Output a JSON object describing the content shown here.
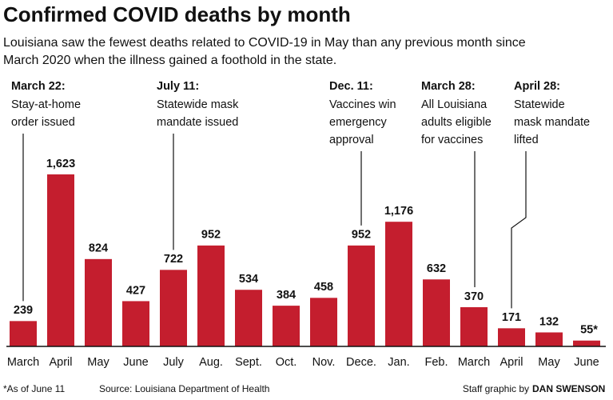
{
  "chart_data": {
    "type": "bar",
    "title": "Confirmed COVID deaths by month",
    "subtitle": [
      "Louisiana saw the fewest deaths related to COVID-19 in May than any previous month since",
      "March 2020 when the illness gained a foothold in the state."
    ],
    "categories": [
      "March",
      "April",
      "May",
      "June",
      "July",
      "Aug.",
      "Sept.",
      "Oct.",
      "Nov.",
      "Dece.",
      "Jan.",
      "Feb.",
      "March",
      "April",
      "May",
      "June"
    ],
    "values": [
      239,
      1623,
      824,
      427,
      722,
      952,
      534,
      384,
      458,
      952,
      1176,
      632,
      370,
      171,
      132,
      55
    ],
    "value_labels": [
      "239",
      "1,623",
      "824",
      "427",
      "722",
      "952",
      "534",
      "384",
      "458",
      "952",
      "1,176",
      "632",
      "370",
      "171",
      "132",
      "55*"
    ],
    "color": "#c41e2e",
    "ylim": [
      0,
      1650
    ],
    "annotations": [
      {
        "date": "March 22:",
        "lines": [
          "Stay-at-home",
          "order issued"
        ]
      },
      {
        "date": "July 11:",
        "lines": [
          "Statewide mask",
          "mandate issued"
        ]
      },
      {
        "date": "Dec. 11:",
        "lines": [
          "Vaccines win",
          "emergency",
          "approval"
        ]
      },
      {
        "date": "March 28:",
        "lines": [
          "All Louisiana",
          "adults eligible",
          "for vaccines"
        ]
      },
      {
        "date": "April 28:",
        "lines": [
          "Statewide",
          "mask mandate",
          "lifted"
        ]
      }
    ],
    "footnote": "*As of June 11",
    "source": "Source: Louisiana Department of Health",
    "credit": "Staff graphic by",
    "credit_name": "DAN SWENSON"
  }
}
